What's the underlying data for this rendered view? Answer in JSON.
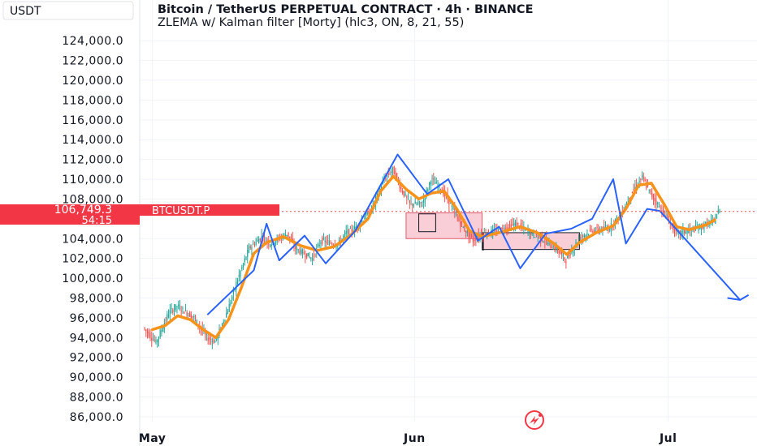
{
  "header": {
    "symbol_line": "Bitcoin / TetherUS PERPETUAL CONTRACT · 4h · BINANCE",
    "indicator_line": "ZLEMA w/ Kalman filter [Morty] (hlc3, ON, 8, 21, 55)"
  },
  "currency_button": "USDT",
  "price_badge": {
    "price": "106,749.3",
    "countdown": "54:15",
    "symbol": "BTCUSDT.P"
  },
  "colors": {
    "up": "#26a69a",
    "down": "#ef5350",
    "ma_line": "#f7931a",
    "pattern_line": "#2962ff",
    "zone_fill": "#f8c6cf",
    "badge": "#f23645",
    "grid": "#f0f3fa",
    "text": "#131722"
  },
  "chart_data": {
    "type": "candlestick",
    "title": "Bitcoin / TetherUS PERPETUAL CONTRACT · 4h · BINANCE",
    "timeframe": "4h",
    "y_axis": {
      "unit": "USDT",
      "range": [
        85500,
        125000
      ],
      "ticks": [
        "124,000.0",
        "122,000.0",
        "120,000.0",
        "118,000.0",
        "116,000.0",
        "114,000.0",
        "112,000.0",
        "110,000.0",
        "108,000.0",
        "104,000.0",
        "102,000.0",
        "100,000.0",
        "98,000.0",
        "96,000.0",
        "94,000.0",
        "92,000.0",
        "90,000.0",
        "88,000.0",
        "86,000.0"
      ],
      "tick_values": [
        124000,
        122000,
        120000,
        118000,
        116000,
        114000,
        112000,
        110000,
        108000,
        104000,
        102000,
        100000,
        98000,
        96000,
        94000,
        92000,
        90000,
        88000,
        86000
      ]
    },
    "x_axis": {
      "labels": [
        "May",
        "Jun",
        "Jul"
      ],
      "label_days": [
        1,
        32,
        62
      ],
      "range_days": [
        -0.5,
        72.5
      ]
    },
    "last_price": 106749.3,
    "price_path": [
      [
        0,
        95000
      ],
      [
        1.5,
        93500
      ],
      [
        3,
        96500
      ],
      [
        4,
        97200
      ],
      [
        6,
        96000
      ],
      [
        7.5,
        94000
      ],
      [
        8.5,
        93600
      ],
      [
        10,
        96800
      ],
      [
        11,
        99500
      ],
      [
        12.5,
        103000
      ],
      [
        14,
        104200
      ],
      [
        15,
        103500
      ],
      [
        17,
        104500
      ],
      [
        18,
        103000
      ],
      [
        20,
        102000
      ],
      [
        21,
        103800
      ],
      [
        23,
        103400
      ],
      [
        24,
        104600
      ],
      [
        25,
        105000
      ],
      [
        27,
        107000
      ],
      [
        28.5,
        110000
      ],
      [
        29.5,
        111000
      ],
      [
        30.5,
        109000
      ],
      [
        31.5,
        107500
      ],
      [
        33,
        107500
      ],
      [
        34,
        110000
      ],
      [
        35,
        109200
      ],
      [
        36,
        108000
      ],
      [
        37.5,
        105500
      ],
      [
        39,
        103800
      ],
      [
        40,
        104500
      ],
      [
        42,
        104800
      ],
      [
        44,
        105500
      ],
      [
        46,
        104500
      ],
      [
        47.5,
        103800
      ],
      [
        49,
        102800
      ],
      [
        50,
        101800
      ],
      [
        51.5,
        104000
      ],
      [
        53,
        104800
      ],
      [
        55,
        105000
      ],
      [
        56.5,
        106500
      ],
      [
        58,
        109000
      ],
      [
        59,
        110200
      ],
      [
        60,
        108500
      ],
      [
        62,
        106000
      ],
      [
        63,
        104500
      ],
      [
        64.5,
        104800
      ],
      [
        66,
        105200
      ],
      [
        67.5,
        105800
      ],
      [
        68,
        106749
      ]
    ],
    "ma_path": [
      [
        1,
        94800
      ],
      [
        2.5,
        95200
      ],
      [
        4,
        96200
      ],
      [
        5.5,
        95800
      ],
      [
        7,
        94800
      ],
      [
        8.5,
        94000
      ],
      [
        10,
        95800
      ],
      [
        11.5,
        99000
      ],
      [
        13,
        102500
      ],
      [
        14.5,
        103600
      ],
      [
        16.5,
        104200
      ],
      [
        18.5,
        103300
      ],
      [
        20.5,
        102800
      ],
      [
        22.5,
        103200
      ],
      [
        24.5,
        104400
      ],
      [
        26.5,
        106000
      ],
      [
        28,
        108800
      ],
      [
        29.5,
        110300
      ],
      [
        31,
        109000
      ],
      [
        32.5,
        108000
      ],
      [
        34,
        108600
      ],
      [
        35.5,
        108800
      ],
      [
        37,
        107000
      ],
      [
        38.5,
        104800
      ],
      [
        40,
        104200
      ],
      [
        42,
        104600
      ],
      [
        44.5,
        105200
      ],
      [
        46.5,
        104600
      ],
      [
        48.5,
        103500
      ],
      [
        50,
        102400
      ],
      [
        51.5,
        103600
      ],
      [
        53.5,
        104600
      ],
      [
        55.5,
        105300
      ],
      [
        57,
        107000
      ],
      [
        58.5,
        109400
      ],
      [
        60,
        109600
      ],
      [
        61.5,
        107500
      ],
      [
        63,
        105200
      ],
      [
        64.5,
        104900
      ],
      [
        66.5,
        105400
      ],
      [
        67.5,
        105900
      ]
    ],
    "pattern_lines": [
      {
        "name": "zigzag",
        "points": [
          [
            7.5,
            96300
          ],
          [
            13,
            100800
          ],
          [
            14.5,
            105500
          ],
          [
            16,
            101800
          ],
          [
            19,
            104300
          ],
          [
            21.5,
            101500
          ],
          [
            25,
            104800
          ],
          [
            30,
            112500
          ],
          [
            33.5,
            108500
          ],
          [
            36,
            110000
          ],
          [
            39.5,
            103800
          ],
          [
            42,
            105200
          ],
          [
            44.5,
            101000
          ],
          [
            47.5,
            104500
          ],
          [
            50.5,
            105000
          ],
          [
            53,
            106000
          ],
          [
            55.5,
            110000
          ],
          [
            57,
            103500
          ],
          [
            59.5,
            107000
          ],
          [
            61,
            106800
          ]
        ]
      },
      {
        "name": "projection",
        "points": [
          [
            61,
            106800
          ],
          [
            70.5,
            97800
          ]
        ]
      },
      {
        "name": "arrowhead",
        "points": [
          [
            69,
            98000
          ],
          [
            70.5,
            97800
          ],
          [
            71.5,
            98300
          ]
        ]
      }
    ],
    "zones": [
      {
        "x": [
          31,
          40
        ],
        "y": [
          104000,
          106600
        ],
        "fill": "#f8c6cf",
        "edge": "#e05a6e"
      },
      {
        "x": [
          32.5,
          34.5
        ],
        "y": [
          104700,
          106500
        ],
        "fill": "none",
        "edge": "#131722"
      },
      {
        "x": [
          40,
          51.5
        ],
        "y": [
          102900,
          104600
        ],
        "fill": "#f8c6cf",
        "edge": "#131722"
      },
      {
        "x": [
          40,
          40.2
        ],
        "y": [
          102800,
          104600
        ],
        "fill": "#131722",
        "edge": "none"
      }
    ]
  }
}
